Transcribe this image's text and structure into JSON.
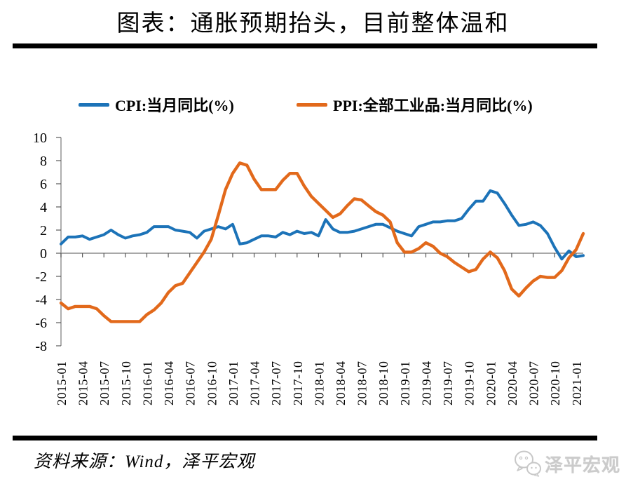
{
  "title": "图表：通胀预期抬头，目前整体温和",
  "legend": [
    {
      "label": "CPI:当月同比(%)",
      "color": "#1C73B8"
    },
    {
      "label": "PPI:全部工业品:当月同比(%)",
      "color": "#E2691B"
    }
  ],
  "source_note": "资料来源：Wind，泽平宏观",
  "watermark_text": "泽平宏观",
  "colors": {
    "cpi_line": "#1C73B8",
    "ppi_line": "#E2691B",
    "axis": "#8C8C8C",
    "tick": "#595959",
    "divider_bar": "#000000",
    "watermark": "#CBCBCB"
  },
  "chart_data": {
    "type": "line",
    "title": "图表：通胀预期抬头，目前整体温和",
    "xlabel": "",
    "ylabel": "",
    "ylim": [
      -8,
      10
    ],
    "ystep": 2,
    "y_tick_labels": [
      "-8",
      "-6",
      "-4",
      "-2",
      "0",
      "2",
      "4",
      "6",
      "8",
      "10"
    ],
    "x_tick_interval": 3,
    "grid": false,
    "legend_position": "top",
    "x": [
      "2015-01",
      "2015-02",
      "2015-03",
      "2015-04",
      "2015-05",
      "2015-06",
      "2015-07",
      "2015-08",
      "2015-09",
      "2015-10",
      "2015-11",
      "2015-12",
      "2016-01",
      "2016-02",
      "2016-03",
      "2016-04",
      "2016-05",
      "2016-06",
      "2016-07",
      "2016-08",
      "2016-09",
      "2016-10",
      "2016-11",
      "2016-12",
      "2017-01",
      "2017-02",
      "2017-03",
      "2017-04",
      "2017-05",
      "2017-06",
      "2017-07",
      "2017-08",
      "2017-09",
      "2017-10",
      "2017-11",
      "2017-12",
      "2018-01",
      "2018-02",
      "2018-03",
      "2018-04",
      "2018-05",
      "2018-06",
      "2018-07",
      "2018-08",
      "2018-09",
      "2018-10",
      "2018-11",
      "2018-12",
      "2019-01",
      "2019-02",
      "2019-03",
      "2019-04",
      "2019-05",
      "2019-06",
      "2019-07",
      "2019-08",
      "2019-09",
      "2019-10",
      "2019-11",
      "2019-12",
      "2020-01",
      "2020-02",
      "2020-03",
      "2020-04",
      "2020-05",
      "2020-06",
      "2020-07",
      "2020-08",
      "2020-09",
      "2020-10",
      "2020-11",
      "2020-12",
      "2021-01",
      "2021-02"
    ],
    "series": [
      {
        "name": "CPI:当月同比(%)",
        "color": "#1C73B8",
        "width": 4,
        "values": [
          0.8,
          1.4,
          1.4,
          1.5,
          1.2,
          1.4,
          1.6,
          2.0,
          1.6,
          1.3,
          1.5,
          1.6,
          1.8,
          2.3,
          2.3,
          2.3,
          2.0,
          1.9,
          1.8,
          1.3,
          1.9,
          2.1,
          2.3,
          2.1,
          2.5,
          0.8,
          0.9,
          1.2,
          1.5,
          1.5,
          1.4,
          1.8,
          1.6,
          1.9,
          1.7,
          1.8,
          1.5,
          2.9,
          2.1,
          1.8,
          1.8,
          1.9,
          2.1,
          2.3,
          2.5,
          2.5,
          2.2,
          1.9,
          1.7,
          1.5,
          2.3,
          2.5,
          2.7,
          2.7,
          2.8,
          2.8,
          3.0,
          3.8,
          4.5,
          4.5,
          5.4,
          5.2,
          4.3,
          3.3,
          2.4,
          2.5,
          2.7,
          2.4,
          1.7,
          0.5,
          -0.5,
          0.2,
          -0.3,
          -0.2
        ]
      },
      {
        "name": "PPI:全部工业品:当月同比(%)",
        "color": "#E2691B",
        "width": 4.4,
        "values": [
          -4.3,
          -4.8,
          -4.6,
          -4.6,
          -4.6,
          -4.8,
          -5.4,
          -5.9,
          -5.9,
          -5.9,
          -5.9,
          -5.9,
          -5.3,
          -4.9,
          -4.3,
          -3.4,
          -2.8,
          -2.6,
          -1.7,
          -0.8,
          0.1,
          1.2,
          3.3,
          5.5,
          6.9,
          7.8,
          7.6,
          6.4,
          5.5,
          5.5,
          5.5,
          6.3,
          6.9,
          6.9,
          5.8,
          4.9,
          4.3,
          3.7,
          3.1,
          3.4,
          4.1,
          4.7,
          4.6,
          4.1,
          3.6,
          3.3,
          2.7,
          0.9,
          0.1,
          0.1,
          0.4,
          0.9,
          0.6,
          0.0,
          -0.3,
          -0.8,
          -1.2,
          -1.6,
          -1.4,
          -0.5,
          0.1,
          -0.4,
          -1.5,
          -3.1,
          -3.7,
          -3.0,
          -2.4,
          -2.0,
          -2.1,
          -2.1,
          -1.5,
          -0.4,
          0.3,
          1.7
        ]
      }
    ]
  }
}
